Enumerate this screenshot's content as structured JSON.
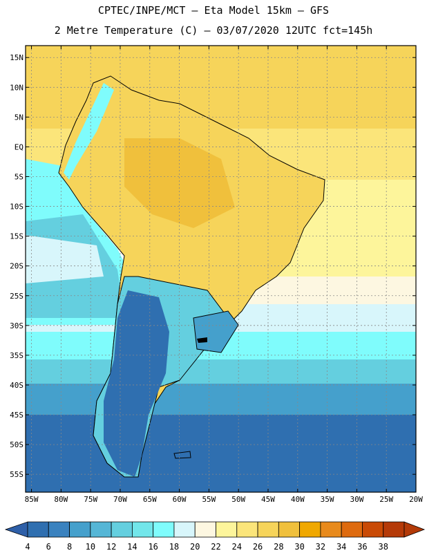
{
  "header": {
    "line1": "CPTEC/INPE/MCT –  Eta Model 15km – GFS",
    "line2": "2 Metre Temperature (C) – 03/07/2020 12UTC fct=145h"
  },
  "map": {
    "lat_labels": [
      "15N",
      "10N",
      "5N",
      "EQ",
      "5S",
      "10S",
      "15S",
      "20S",
      "25S",
      "30S",
      "35S",
      "40S",
      "45S",
      "50S",
      "55S"
    ],
    "lon_labels": [
      "85W",
      "80W",
      "75W",
      "70W",
      "65W",
      "60W",
      "55W",
      "50W",
      "45W",
      "40W",
      "35W",
      "30W",
      "25W",
      "20W"
    ],
    "lat_range": [
      17,
      -58
    ],
    "lon_range": [
      -86,
      -20
    ]
  },
  "colorbar": {
    "labels": [
      "4",
      "6",
      "8",
      "10",
      "12",
      "14",
      "16",
      "18",
      "20",
      "22",
      "24",
      "26",
      "28",
      "30",
      "32",
      "34",
      "36",
      "38"
    ],
    "colors": [
      "#2f6fb0",
      "#3a82bf",
      "#45a0cc",
      "#55b6d6",
      "#64cfdf",
      "#72e6ea",
      "#7ffcfc",
      "#d8f6fb",
      "#fdf7e1",
      "#fdf59b",
      "#fbe57a",
      "#f6d45a",
      "#f0c03c",
      "#f0a800",
      "#e88a1c",
      "#de6a0e",
      "#c94a05",
      "#b53a08"
    ],
    "under_color": "#2e5fa8",
    "over_color": "#b33a08"
  }
}
